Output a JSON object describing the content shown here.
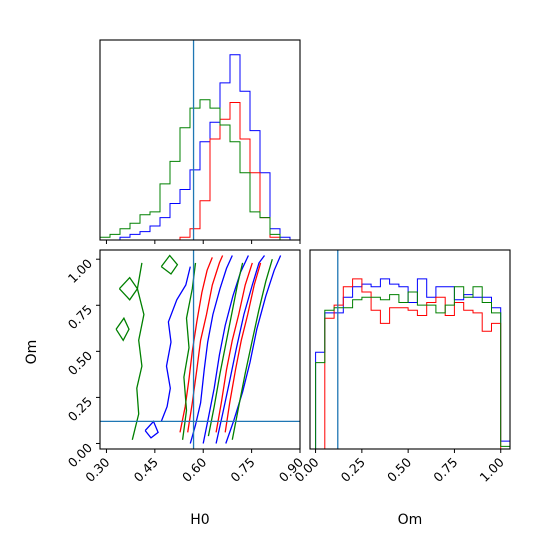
{
  "chart_data": {
    "type": "corner",
    "parameters": [
      "H0",
      "Om"
    ],
    "truth": {
      "H0": 0.57,
      "Om": 0.12
    },
    "colors": {
      "series_a": "#0000ff",
      "series_b": "#ff0000",
      "series_c": "#008000",
      "truth": "#1f77b4"
    },
    "axes": {
      "H0": {
        "range": [
          0.28,
          0.9
        ],
        "ticks": [
          0.3,
          0.45,
          0.6,
          0.75,
          0.9
        ],
        "tick_labels": [
          "0.30",
          "0.45",
          "0.60",
          "0.75",
          "0.90"
        ],
        "label": "H0"
      },
      "Om": {
        "range": [
          -0.03,
          1.05
        ],
        "ticks": [
          0.0,
          0.25,
          0.5,
          0.75,
          1.0
        ],
        "tick_labels": [
          "0.00",
          "0.25",
          "0.50",
          "0.75",
          "1.00"
        ],
        "label": "Om"
      }
    },
    "hist_H0": {
      "bin_edges": [
        0.28,
        0.311,
        0.342,
        0.373,
        0.404,
        0.435,
        0.466,
        0.497,
        0.528,
        0.559,
        0.59,
        0.621,
        0.652,
        0.683,
        0.714,
        0.745,
        0.776,
        0.807,
        0.838,
        0.869,
        0.9
      ],
      "series": [
        {
          "key": "series_a",
          "counts": [
            0,
            0,
            1,
            2,
            3,
            5,
            8,
            13,
            18,
            25,
            35,
            42,
            56,
            66,
            53,
            39,
            24,
            4,
            1,
            0
          ]
        },
        {
          "key": "series_b",
          "counts": [
            0,
            0,
            0,
            0,
            0,
            0,
            0,
            0,
            1,
            4,
            14,
            36,
            43,
            49,
            36,
            24,
            8,
            1,
            0,
            0
          ]
        },
        {
          "key": "series_c",
          "counts": [
            1,
            2,
            4,
            6,
            9,
            10,
            20,
            28,
            40,
            47,
            50,
            47,
            41,
            35,
            24,
            10,
            8,
            2,
            0,
            0
          ]
        }
      ]
    },
    "hist_Om": {
      "bin_edges": [
        0.0,
        0.05,
        0.1,
        0.15,
        0.2,
        0.25,
        0.3,
        0.35,
        0.4,
        0.45,
        0.5,
        0.55,
        0.6,
        0.65,
        0.7,
        0.75,
        0.8,
        0.85,
        0.9,
        0.95,
        1.0,
        1.05
      ],
      "series": [
        {
          "key": "series_a",
          "counts": [
            37,
            52,
            52,
            58,
            62,
            63,
            62,
            65,
            63,
            62,
            56,
            65,
            58,
            62,
            62,
            57,
            59,
            58,
            58,
            54,
            3
          ]
        },
        {
          "key": "series_b",
          "counts": [
            0,
            50,
            55,
            62,
            65,
            60,
            53,
            48,
            54,
            54,
            53,
            51,
            56,
            58,
            51,
            56,
            53,
            52,
            45,
            48,
            0
          ]
        },
        {
          "key": "series_c",
          "counts": [
            33,
            53,
            54,
            54,
            57,
            58,
            58,
            57,
            59,
            56,
            60,
            55,
            55,
            52,
            55,
            62,
            58,
            62,
            56,
            52,
            1
          ]
        }
      ]
    },
    "contours": [
      {
        "key": "series_a",
        "levels": [
          [
            [
              0.56,
              0.0
            ],
            [
              0.576,
              0.1
            ],
            [
              0.592,
              0.22
            ],
            [
              0.603,
              0.4
            ],
            [
              0.614,
              0.55
            ],
            [
              0.63,
              0.7
            ],
            [
              0.652,
              0.84
            ],
            [
              0.672,
              0.95
            ],
            [
              0.69,
              1.02
            ]
          ],
          [
            [
              0.6,
              0.0
            ],
            [
              0.616,
              0.14
            ],
            [
              0.634,
              0.3
            ],
            [
              0.65,
              0.48
            ],
            [
              0.668,
              0.64
            ],
            [
              0.692,
              0.8
            ],
            [
              0.716,
              0.93
            ],
            [
              0.74,
              1.02
            ]
          ],
          [
            [
              0.64,
              0.0
            ],
            [
              0.66,
              0.16
            ],
            [
              0.682,
              0.34
            ],
            [
              0.703,
              0.52
            ],
            [
              0.726,
              0.7
            ],
            [
              0.752,
              0.86
            ],
            [
              0.773,
              0.98
            ],
            [
              0.79,
              1.02
            ]
          ],
          [
            [
              0.67,
              0.0
            ],
            [
              0.694,
              0.12
            ],
            [
              0.722,
              0.28
            ],
            [
              0.745,
              0.44
            ],
            [
              0.766,
              0.62
            ],
            [
              0.794,
              0.8
            ],
            [
              0.82,
              0.94
            ],
            [
              0.84,
              1.02
            ]
          ],
          [
            [
              0.47,
              0.12
            ],
            [
              0.488,
              0.2
            ],
            [
              0.498,
              0.3
            ],
            [
              0.486,
              0.42
            ],
            [
              0.5,
              0.55
            ],
            [
              0.492,
              0.66
            ],
            [
              0.518,
              0.78
            ],
            [
              0.546,
              0.86
            ],
            [
              0.56,
              0.96
            ]
          ],
          [
            [
              0.42,
              0.07
            ],
            [
              0.446,
              0.12
            ],
            [
              0.46,
              0.06
            ],
            [
              0.438,
              0.03
            ],
            [
              0.42,
              0.07
            ]
          ]
        ]
      },
      {
        "key": "series_b",
        "levels": [
          [
            [
              0.528,
              0.06
            ],
            [
              0.544,
              0.2
            ],
            [
              0.556,
              0.35
            ],
            [
              0.566,
              0.5
            ],
            [
              0.58,
              0.66
            ],
            [
              0.596,
              0.82
            ],
            [
              0.612,
              0.94
            ],
            [
              0.628,
              1.01
            ]
          ],
          [
            [
              0.552,
              0.06
            ],
            [
              0.566,
              0.22
            ],
            [
              0.58,
              0.4
            ],
            [
              0.592,
              0.56
            ],
            [
              0.61,
              0.7
            ],
            [
              0.628,
              0.86
            ],
            [
              0.65,
              0.98
            ],
            [
              0.66,
              1.02
            ]
          ],
          [
            [
              0.64,
              0.06
            ],
            [
              0.656,
              0.22
            ],
            [
              0.672,
              0.4
            ],
            [
              0.69,
              0.56
            ],
            [
              0.71,
              0.7
            ],
            [
              0.73,
              0.86
            ],
            [
              0.752,
              0.98
            ]
          ],
          [
            [
              0.668,
              0.06
            ],
            [
              0.682,
              0.22
            ],
            [
              0.7,
              0.4
            ],
            [
              0.718,
              0.56
            ],
            [
              0.738,
              0.7
            ],
            [
              0.758,
              0.86
            ],
            [
              0.778,
              0.98
            ]
          ]
        ]
      },
      {
        "key": "series_c",
        "levels": [
          [
            [
              0.536,
              0.02
            ],
            [
              0.548,
              0.18
            ],
            [
              0.54,
              0.36
            ],
            [
              0.556,
              0.52
            ],
            [
              0.548,
              0.68
            ],
            [
              0.566,
              0.84
            ],
            [
              0.576,
              0.98
            ]
          ],
          [
            [
              0.616,
              0.04
            ],
            [
              0.634,
              0.2
            ],
            [
              0.652,
              0.38
            ],
            [
              0.67,
              0.54
            ],
            [
              0.688,
              0.7
            ],
            [
              0.706,
              0.86
            ],
            [
              0.722,
              0.98
            ]
          ],
          [
            [
              0.69,
              0.02
            ],
            [
              0.71,
              0.2
            ],
            [
              0.73,
              0.38
            ],
            [
              0.752,
              0.56
            ],
            [
              0.772,
              0.72
            ],
            [
              0.794,
              0.88
            ],
            [
              0.814,
              1.0
            ]
          ],
          [
            [
              0.38,
              0.02
            ],
            [
              0.4,
              0.16
            ],
            [
              0.394,
              0.3
            ],
            [
              0.41,
              0.42
            ],
            [
              0.4,
              0.56
            ],
            [
              0.416,
              0.7
            ],
            [
              0.396,
              0.84
            ],
            [
              0.41,
              0.98
            ]
          ],
          [
            [
              0.33,
              0.62
            ],
            [
              0.354,
              0.68
            ],
            [
              0.37,
              0.62
            ],
            [
              0.352,
              0.56
            ],
            [
              0.33,
              0.62
            ]
          ],
          [
            [
              0.34,
              0.84
            ],
            [
              0.372,
              0.9
            ],
            [
              0.396,
              0.84
            ],
            [
              0.372,
              0.78
            ],
            [
              0.34,
              0.84
            ]
          ],
          [
            [
              0.47,
              0.96
            ],
            [
              0.496,
              1.02
            ],
            [
              0.52,
              0.97
            ],
            [
              0.5,
              0.92
            ],
            [
              0.47,
              0.96
            ]
          ]
        ]
      }
    ]
  }
}
